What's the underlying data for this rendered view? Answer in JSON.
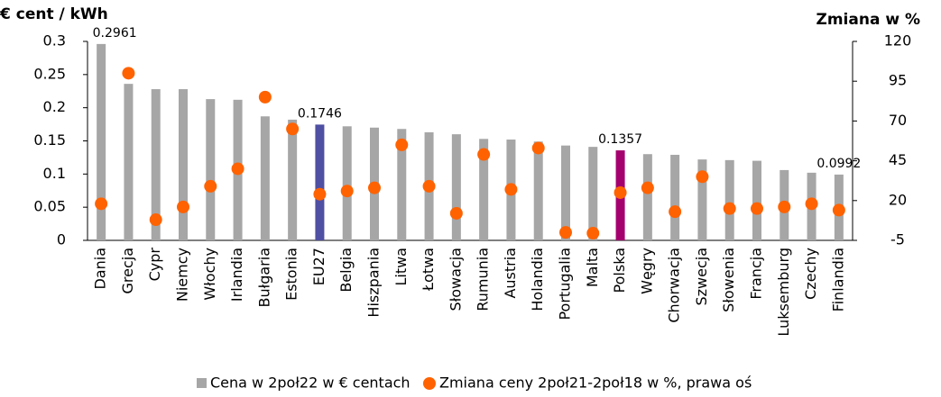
{
  "chart_data": {
    "type": "bar",
    "y_label": "€ cent / kWh",
    "y2_label": "Zmiana w %",
    "categories": [
      "Dania",
      "Grecja",
      "Cypr",
      "Niemcy",
      "Włochy",
      "Irlandia",
      "Bułgaria",
      "Estonia",
      "EU27",
      "Belgia",
      "Hiszpania",
      "Litwa",
      "Łotwa",
      "Słowacja",
      "Rumunia",
      "Austria",
      "Holandia",
      "Portugalia",
      "Malta",
      "Polska",
      "Węgry",
      "Chorwacja",
      "Szwecja",
      "Słowenia",
      "Francja",
      "Luksemburg",
      "Czechy",
      "Finlandia"
    ],
    "series": [
      {
        "name": "Cena w 2poł22 w € centach",
        "type": "bar",
        "color": "#a6a6a6",
        "bar_colors": [
          "#a6a6a6",
          "#a6a6a6",
          "#a6a6a6",
          "#a6a6a6",
          "#a6a6a6",
          "#a6a6a6",
          "#a6a6a6",
          "#a6a6a6",
          "#4f4fa3",
          "#a6a6a6",
          "#a6a6a6",
          "#a6a6a6",
          "#a6a6a6",
          "#a6a6a6",
          "#a6a6a6",
          "#a6a6a6",
          "#a6a6a6",
          "#a6a6a6",
          "#a6a6a6",
          "#a4006e",
          "#a6a6a6",
          "#a6a6a6",
          "#a6a6a6",
          "#a6a6a6",
          "#a6a6a6",
          "#a6a6a6",
          "#a6a6a6",
          "#a6a6a6"
        ],
        "values": [
          0.2961,
          0.236,
          0.228,
          0.228,
          0.213,
          0.212,
          0.187,
          0.182,
          0.1746,
          0.172,
          0.17,
          0.168,
          0.163,
          0.16,
          0.153,
          0.152,
          0.149,
          0.143,
          0.141,
          0.1357,
          0.13,
          0.129,
          0.122,
          0.121,
          0.12,
          0.106,
          0.102,
          0.0992
        ],
        "value_labels": [
          "0.2961",
          null,
          null,
          null,
          null,
          null,
          null,
          null,
          "0.1746",
          null,
          null,
          null,
          null,
          null,
          null,
          null,
          null,
          null,
          null,
          "0.1357",
          null,
          null,
          null,
          null,
          null,
          null,
          null,
          "0.0992"
        ]
      },
      {
        "name": "Zmiana ceny 2poł21-2poł18 w %, prawa oś",
        "type": "scatter",
        "axis": "y2",
        "color": "#ff6200",
        "values": [
          18,
          100,
          8,
          16,
          29,
          40,
          85,
          65,
          24,
          26,
          28,
          55,
          29,
          12,
          49,
          27,
          53,
          0,
          -0.5,
          25,
          28,
          13,
          35,
          15,
          15,
          16,
          18,
          14
        ]
      }
    ],
    "ylim": [
      0,
      0.3
    ],
    "yticks": [
      0,
      0.05,
      0.1,
      0.15,
      0.2,
      0.25,
      0.3
    ],
    "y2lim": [
      -5,
      120
    ],
    "y2ticks": [
      -5,
      20,
      45,
      70,
      95,
      120
    ]
  }
}
